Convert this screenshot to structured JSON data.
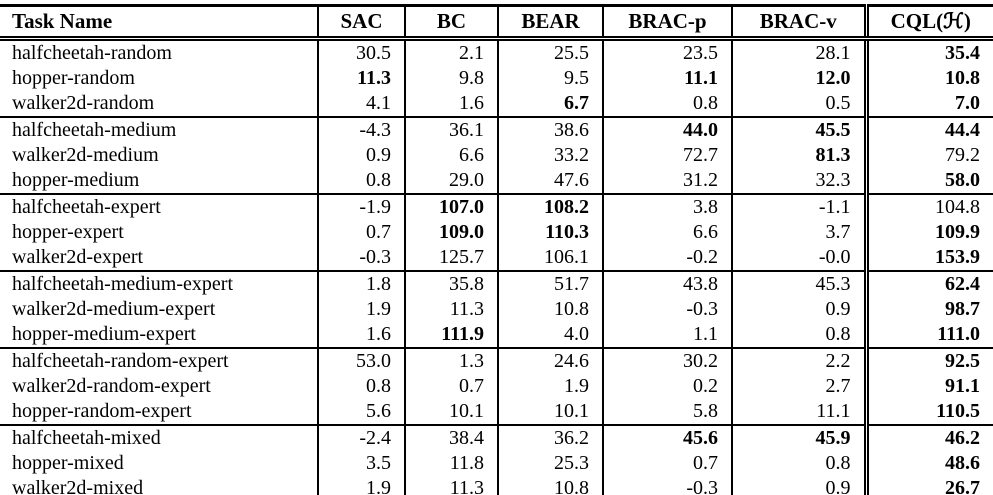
{
  "table": {
    "columns": [
      {
        "key": "task-name",
        "label": "Task Name"
      },
      {
        "key": "sac",
        "label": "SAC"
      },
      {
        "key": "bc",
        "label": "BC"
      },
      {
        "key": "bear",
        "label": "BEAR"
      },
      {
        "key": "brac-p",
        "label": "BRAC-p"
      },
      {
        "key": "brac-v",
        "label": "BRAC-v"
      },
      {
        "key": "cql-h",
        "label": "CQL(ℋ)"
      }
    ],
    "groups": [
      {
        "rows": [
          {
            "task": "halfcheetah-random",
            "values": [
              "30.5",
              "2.1",
              "25.5",
              "23.5",
              "28.1",
              "35.4"
            ],
            "bold": [
              0,
              0,
              0,
              0,
              0,
              1
            ]
          },
          {
            "task": "hopper-random",
            "values": [
              "11.3",
              "9.8",
              "9.5",
              "11.1",
              "12.0",
              "10.8"
            ],
            "bold": [
              1,
              0,
              0,
              1,
              1,
              1
            ]
          },
          {
            "task": "walker2d-random",
            "values": [
              "4.1",
              "1.6",
              "6.7",
              "0.8",
              "0.5",
              "7.0"
            ],
            "bold": [
              0,
              0,
              1,
              0,
              0,
              1
            ]
          }
        ]
      },
      {
        "rows": [
          {
            "task": "halfcheetah-medium",
            "values": [
              "-4.3",
              "36.1",
              "38.6",
              "44.0",
              "45.5",
              "44.4"
            ],
            "bold": [
              0,
              0,
              0,
              1,
              1,
              1
            ]
          },
          {
            "task": "walker2d-medium",
            "values": [
              "0.9",
              "6.6",
              "33.2",
              "72.7",
              "81.3",
              "79.2"
            ],
            "bold": [
              0,
              0,
              0,
              0,
              1,
              0
            ]
          },
          {
            "task": "hopper-medium",
            "values": [
              "0.8",
              "29.0",
              "47.6",
              "31.2",
              "32.3",
              "58.0"
            ],
            "bold": [
              0,
              0,
              0,
              0,
              0,
              1
            ]
          }
        ]
      },
      {
        "rows": [
          {
            "task": "halfcheetah-expert",
            "values": [
              "-1.9",
              "107.0",
              "108.2",
              "3.8",
              "-1.1",
              "104.8"
            ],
            "bold": [
              0,
              1,
              1,
              0,
              0,
              0
            ]
          },
          {
            "task": "hopper-expert",
            "values": [
              "0.7",
              "109.0",
              "110.3",
              "6.6",
              "3.7",
              "109.9"
            ],
            "bold": [
              0,
              1,
              1,
              0,
              0,
              1
            ]
          },
          {
            "task": "walker2d-expert",
            "values": [
              "-0.3",
              "125.7",
              "106.1",
              "-0.2",
              "-0.0",
              "153.9"
            ],
            "bold": [
              0,
              0,
              0,
              0,
              0,
              1
            ]
          }
        ]
      },
      {
        "rows": [
          {
            "task": "halfcheetah-medium-expert",
            "values": [
              "1.8",
              "35.8",
              "51.7",
              "43.8",
              "45.3",
              "62.4"
            ],
            "bold": [
              0,
              0,
              0,
              0,
              0,
              1
            ]
          },
          {
            "task": "walker2d-medium-expert",
            "values": [
              "1.9",
              "11.3",
              "10.8",
              "-0.3",
              "0.9",
              "98.7"
            ],
            "bold": [
              0,
              0,
              0,
              0,
              0,
              1
            ]
          },
          {
            "task": "hopper-medium-expert",
            "values": [
              "1.6",
              "111.9",
              "4.0",
              "1.1",
              "0.8",
              "111.0"
            ],
            "bold": [
              0,
              1,
              0,
              0,
              0,
              1
            ]
          }
        ]
      },
      {
        "rows": [
          {
            "task": "halfcheetah-random-expert",
            "values": [
              "53.0",
              "1.3",
              "24.6",
              "30.2",
              "2.2",
              "92.5"
            ],
            "bold": [
              0,
              0,
              0,
              0,
              0,
              1
            ]
          },
          {
            "task": "walker2d-random-expert",
            "values": [
              "0.8",
              "0.7",
              "1.9",
              "0.2",
              "2.7",
              "91.1"
            ],
            "bold": [
              0,
              0,
              0,
              0,
              0,
              1
            ]
          },
          {
            "task": "hopper-random-expert",
            "values": [
              "5.6",
              "10.1",
              "10.1",
              "5.8",
              "11.1",
              "110.5"
            ],
            "bold": [
              0,
              0,
              0,
              0,
              0,
              1
            ]
          }
        ]
      },
      {
        "rows": [
          {
            "task": "halfcheetah-mixed",
            "values": [
              "-2.4",
              "38.4",
              "36.2",
              "45.6",
              "45.9",
              "46.2"
            ],
            "bold": [
              0,
              0,
              0,
              1,
              1,
              1
            ]
          },
          {
            "task": "hopper-mixed",
            "values": [
              "3.5",
              "11.8",
              "25.3",
              "0.7",
              "0.8",
              "48.6"
            ],
            "bold": [
              0,
              0,
              0,
              0,
              0,
              1
            ]
          },
          {
            "task": "walker2d-mixed",
            "values": [
              "1.9",
              "11.3",
              "10.8",
              "-0.3",
              "0.9",
              "26.7"
            ],
            "bold": [
              0,
              0,
              0,
              0,
              0,
              1
            ]
          }
        ]
      }
    ]
  }
}
